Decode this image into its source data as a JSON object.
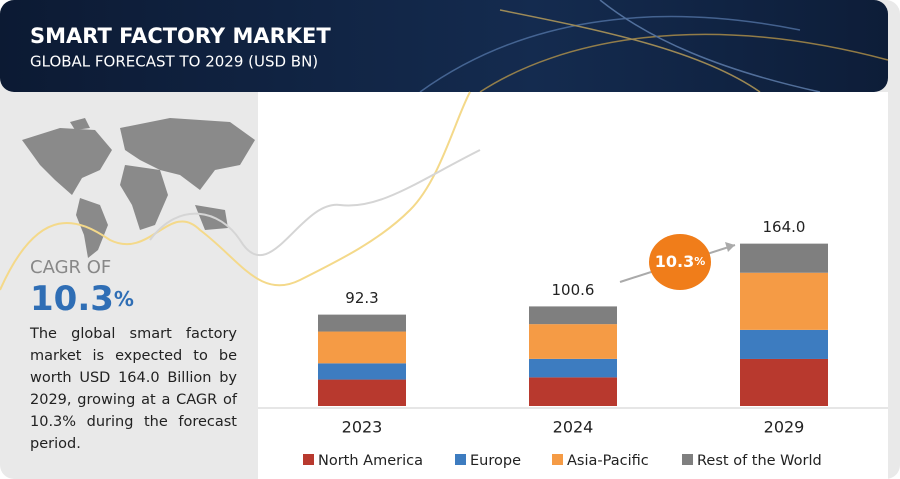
{
  "header": {
    "title": "SMART FACTORY MARKET",
    "subtitle": "GLOBAL FORECAST TO 2029 (USD BN)"
  },
  "cagr": {
    "label": "CAGR OF",
    "value": "10.3",
    "unit": "%"
  },
  "description": "The global smart factory market is expected to be worth USD 164.0 Billion by 2029, growing at a CAGR of 10.3% during the forecast period.",
  "chart_data": {
    "type": "stacked_bar",
    "categories": [
      "2023",
      "2024",
      "2029"
    ],
    "series": [
      {
        "name": "North America",
        "color": "#b8392e",
        "values": [
          26.7,
          28.9,
          47.5
        ]
      },
      {
        "name": "Europe",
        "color": "#3d7cc0",
        "values": [
          16.4,
          18.7,
          29.4
        ]
      },
      {
        "name": "Asia-Pacific",
        "color": "#f59b45",
        "values": [
          32.1,
          35.1,
          57.7
        ]
      },
      {
        "name": "Rest of the World",
        "color": "#7f7f7f",
        "values": [
          17.1,
          17.9,
          29.4
        ]
      }
    ],
    "total_labels": [
      "92.3",
      "100.6",
      "164.0"
    ],
    "annotation": {
      "value": "10.3",
      "unit": "%"
    }
  }
}
